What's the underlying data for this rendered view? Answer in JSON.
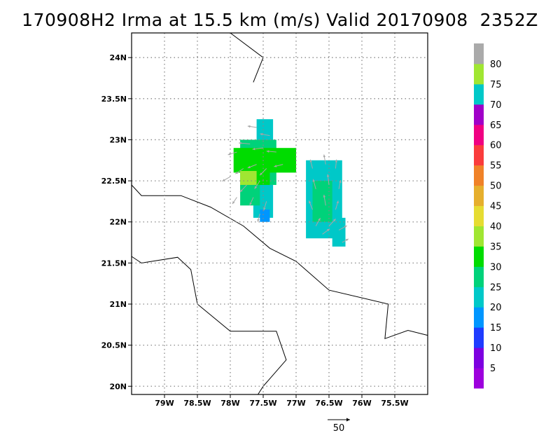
{
  "title": "170908H2 Irma at 15.5 km (m/s) Valid 20170908  2352Z",
  "map": {
    "lon_range": [
      -79.5,
      -75
    ],
    "lat_range": [
      19.9,
      24.3
    ],
    "lon_ticks": [
      {
        "value": -79.0,
        "label": "79W"
      },
      {
        "value": -78.5,
        "label": "78.5W"
      },
      {
        "value": -78.0,
        "label": "78W"
      },
      {
        "value": -77.5,
        "label": "77.5W"
      },
      {
        "value": -77.0,
        "label": "77W"
      },
      {
        "value": -76.5,
        "label": "76.5W"
      },
      {
        "value": -76.0,
        "label": "76W"
      },
      {
        "value": -75.5,
        "label": "75.5W"
      }
    ],
    "lat_ticks": [
      {
        "value": 20.0,
        "label": "20N"
      },
      {
        "value": 20.5,
        "label": "20.5N"
      },
      {
        "value": 21.0,
        "label": "21N"
      },
      {
        "value": 21.5,
        "label": "21.5N"
      },
      {
        "value": 22.0,
        "label": "22N"
      },
      {
        "value": 22.5,
        "label": "22.5N"
      },
      {
        "value": 23.0,
        "label": "23N"
      },
      {
        "value": 23.5,
        "label": "23.5N"
      },
      {
        "value": 24.0,
        "label": "24N"
      }
    ],
    "grid": true
  },
  "colorbar": {
    "levels": [
      {
        "label": "5",
        "color": "#9d00dd"
      },
      {
        "label": "10",
        "color": "#7d00e0"
      },
      {
        "label": "15",
        "color": "#1f3cff"
      },
      {
        "label": "20",
        "color": "#0096ff"
      },
      {
        "label": "25",
        "color": "#00c8c8"
      },
      {
        "label": "30",
        "color": "#00d27a"
      },
      {
        "label": "35",
        "color": "#00dc00"
      },
      {
        "label": "40",
        "color": "#a0e632"
      },
      {
        "label": "45",
        "color": "#e6dc32"
      },
      {
        "label": "50",
        "color": "#e6af2d"
      },
      {
        "label": "55",
        "color": "#f08228"
      },
      {
        "label": "60",
        "color": "#fa3c3c"
      },
      {
        "label": "65",
        "color": "#f00082"
      },
      {
        "label": "70",
        "color": "#a000c8"
      },
      {
        "label": "75",
        "color": "#00c8c8"
      },
      {
        "label": "80",
        "color": "#a0e632"
      },
      {
        "label": "",
        "color": "#aaaaaa"
      }
    ]
  },
  "reference_vector": {
    "label": "50"
  },
  "wind_cells": [
    {
      "lon_min": -77.6,
      "lon_max": -77.35,
      "lat_min": 22.75,
      "lat_max": 23.25,
      "color": "#00c8c8"
    },
    {
      "lon_min": -77.85,
      "lon_max": -77.3,
      "lat_min": 22.45,
      "lat_max": 23.0,
      "color": "#00d27a"
    },
    {
      "lon_min": -77.95,
      "lon_max": -77.0,
      "lat_min": 22.6,
      "lat_max": 22.9,
      "color": "#00dc00"
    },
    {
      "lon_min": -77.8,
      "lon_max": -77.4,
      "lat_min": 22.4,
      "lat_max": 22.8,
      "color": "#00dc00"
    },
    {
      "lon_min": -77.85,
      "lon_max": -77.6,
      "lat_min": 22.38,
      "lat_max": 22.62,
      "color": "#a0e632"
    },
    {
      "lon_min": -77.65,
      "lon_max": -77.35,
      "lat_min": 22.05,
      "lat_max": 22.45,
      "color": "#00c8c8"
    },
    {
      "lon_min": -77.55,
      "lon_max": -77.4,
      "lat_min": 22.0,
      "lat_max": 22.15,
      "color": "#0096ff"
    },
    {
      "lon_min": -77.85,
      "lon_max": -77.55,
      "lat_min": 22.2,
      "lat_max": 22.45,
      "color": "#00d27a"
    },
    {
      "lon_min": -76.85,
      "lon_max": -76.3,
      "lat_min": 21.8,
      "lat_max": 22.75,
      "color": "#00c8c8"
    },
    {
      "lon_min": -76.75,
      "lon_max": -76.45,
      "lat_min": 22.0,
      "lat_max": 22.5,
      "color": "#00d27a"
    },
    {
      "lon_min": -76.45,
      "lon_max": -76.25,
      "lat_min": 21.7,
      "lat_max": 22.05,
      "color": "#00c8c8"
    }
  ],
  "wind_vectors": [
    {
      "lon": -77.6,
      "lat": 23.15,
      "u": -20,
      "v": 3
    },
    {
      "lon": -77.4,
      "lat": 23.05,
      "u": -22,
      "v": 4
    },
    {
      "lon": -77.7,
      "lat": 22.95,
      "u": -25,
      "v": 2
    },
    {
      "lon": -77.5,
      "lat": 22.9,
      "u": -24,
      "v": -3
    },
    {
      "lon": -77.3,
      "lat": 22.85,
      "u": -22,
      "v": 2
    },
    {
      "lon": -77.9,
      "lat": 22.85,
      "u": -20,
      "v": -6
    },
    {
      "lon": -77.2,
      "lat": 22.7,
      "u": -20,
      "v": -5
    },
    {
      "lon": -77.8,
      "lat": 22.65,
      "u": -18,
      "v": -12
    },
    {
      "lon": -77.6,
      "lat": 22.7,
      "u": -20,
      "v": -8
    },
    {
      "lon": -77.45,
      "lat": 22.65,
      "u": -15,
      "v": -15
    },
    {
      "lon": -78.0,
      "lat": 22.55,
      "u": -18,
      "v": -10
    },
    {
      "lon": -77.75,
      "lat": 22.45,
      "u": -15,
      "v": -16
    },
    {
      "lon": -77.55,
      "lat": 22.5,
      "u": -12,
      "v": -18
    },
    {
      "lon": -77.9,
      "lat": 22.3,
      "u": -10,
      "v": -15
    },
    {
      "lon": -77.65,
      "lat": 22.3,
      "u": -8,
      "v": -18
    },
    {
      "lon": -77.45,
      "lat": 22.25,
      "u": -6,
      "v": -20
    },
    {
      "lon": -77.55,
      "lat": 22.1,
      "u": -5,
      "v": -18
    },
    {
      "lon": -76.75,
      "lat": 22.65,
      "u": -5,
      "v": 20
    },
    {
      "lon": -76.55,
      "lat": 22.7,
      "u": -4,
      "v": 22
    },
    {
      "lon": -76.4,
      "lat": 22.65,
      "u": 2,
      "v": 20
    },
    {
      "lon": -76.7,
      "lat": 22.4,
      "u": -6,
      "v": 22
    },
    {
      "lon": -76.5,
      "lat": 22.45,
      "u": -3,
      "v": 24
    },
    {
      "lon": -76.35,
      "lat": 22.4,
      "u": 4,
      "v": 20
    },
    {
      "lon": -76.75,
      "lat": 22.15,
      "u": -8,
      "v": 20
    },
    {
      "lon": -76.55,
      "lat": 22.2,
      "u": -4,
      "v": 24
    },
    {
      "lon": -76.4,
      "lat": 22.15,
      "u": 6,
      "v": 20
    },
    {
      "lon": -76.7,
      "lat": 21.95,
      "u": 10,
      "v": 18
    },
    {
      "lon": -76.5,
      "lat": 21.95,
      "u": 15,
      "v": 16
    },
    {
      "lon": -76.35,
      "lat": 21.9,
      "u": 18,
      "v": 10
    },
    {
      "lon": -76.6,
      "lat": 21.85,
      "u": 16,
      "v": 12
    },
    {
      "lon": -76.3,
      "lat": 21.75,
      "u": 14,
      "v": 8
    }
  ],
  "coastlines": [
    [
      [
        -78.0,
        24.3
      ],
      [
        -77.5,
        24.0
      ],
      [
        -77.65,
        23.7
      ]
    ],
    [
      [
        -79.5,
        22.45
      ],
      [
        -79.35,
        22.32
      ],
      [
        -78.75,
        22.32
      ],
      [
        -78.3,
        22.18
      ],
      [
        -77.8,
        21.95
      ],
      [
        -77.4,
        21.68
      ],
      [
        -77.0,
        21.52
      ],
      [
        -76.5,
        21.17
      ],
      [
        -75.6,
        21.0
      ],
      [
        -75.65,
        20.58
      ],
      [
        -75.3,
        20.68
      ],
      [
        -75.0,
        20.62
      ]
    ],
    [
      [
        -79.5,
        21.58
      ],
      [
        -79.35,
        21.5
      ],
      [
        -78.8,
        21.57
      ],
      [
        -78.6,
        21.42
      ],
      [
        -78.5,
        21.0
      ],
      [
        -78.0,
        20.67
      ],
      [
        -77.3,
        20.67
      ],
      [
        -77.15,
        20.32
      ],
      [
        -77.5,
        20.0
      ],
      [
        -77.58,
        19.9
      ]
    ]
  ]
}
